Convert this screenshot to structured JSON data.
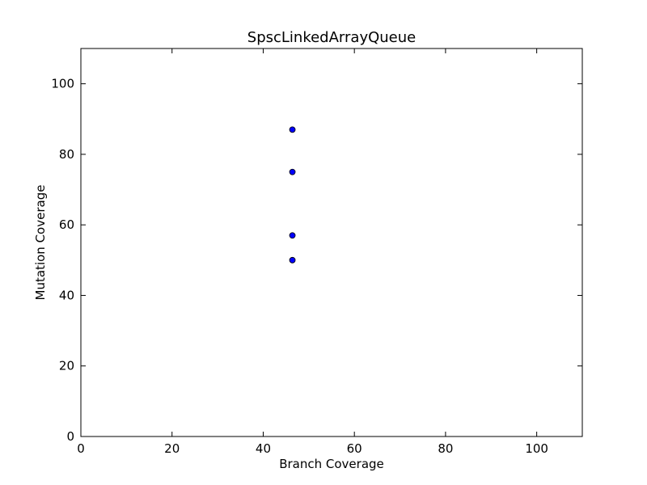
{
  "chart_data": {
    "type": "scatter",
    "title": "SpscLinkedArrayQueue",
    "xlabel": "Branch Coverage",
    "ylabel": "Mutation Coverage",
    "xlim": [
      0,
      110
    ],
    "ylim": [
      0,
      110
    ],
    "xticks": [
      0,
      20,
      40,
      60,
      80,
      100
    ],
    "yticks": [
      0,
      20,
      40,
      60,
      80,
      100
    ],
    "grid": false,
    "marker_color": "#0000ff",
    "points": [
      {
        "x": 46.4,
        "y": 87
      },
      {
        "x": 46.4,
        "y": 75
      },
      {
        "x": 46.4,
        "y": 57
      },
      {
        "x": 46.4,
        "y": 50
      }
    ]
  }
}
